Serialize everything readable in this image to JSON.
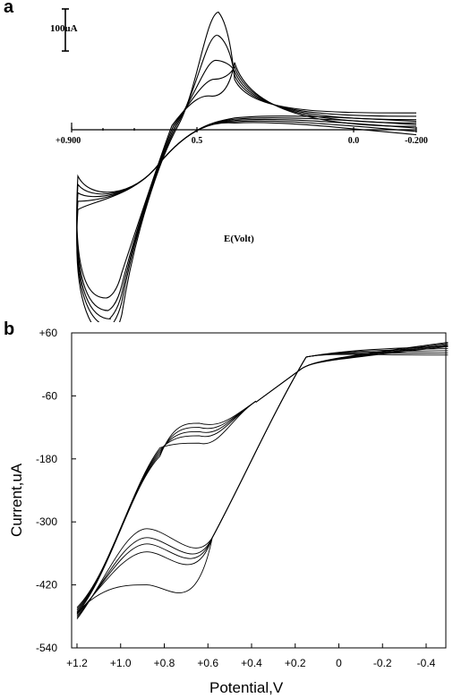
{
  "panels": {
    "a_label": "a",
    "b_label": "b"
  },
  "colors": {
    "ink": "#000000",
    "background": "#ffffff"
  },
  "chart_data": [
    {
      "panel": "a",
      "type": "line",
      "xlabel": "E(Volt)",
      "ylabel": "",
      "scale_bar_label": "100uA",
      "x_tick_labels": [
        "+0.900",
        "0.5",
        "0.0",
        "-0.200"
      ],
      "x_tick_values": [
        0.9,
        0.5,
        0.0,
        -0.2
      ],
      "x_direction": "decreasing-left-to-right",
      "y_units": "uA (zero at x-axis)",
      "cycles": [
        {
          "anodic_peak_uA": 280,
          "cathodic_peak_uA": -500
        },
        {
          "anodic_peak_uA": 225,
          "cathodic_peak_uA": -470
        },
        {
          "anodic_peak_uA": 165,
          "cathodic_peak_uA": -450
        },
        {
          "anodic_peak_uA": 120,
          "cathodic_peak_uA": -430
        },
        {
          "anodic_peak_uA": 80,
          "cathodic_peak_uA": -400
        }
      ]
    },
    {
      "panel": "b",
      "type": "line",
      "xlabel": "Potential,V",
      "ylabel": "Current,uA",
      "x_tick_labels": [
        "+1.2",
        "+1.0",
        "+0.8",
        "+0.6",
        "+0.4",
        "+0.2",
        "0",
        "-0.2",
        "-0.4"
      ],
      "x_tick_values": [
        1.2,
        1.0,
        0.8,
        0.6,
        0.4,
        0.2,
        0.0,
        -0.2,
        -0.4
      ],
      "y_tick_labels": [
        "+60",
        "-60",
        "-180",
        "-300",
        "-420",
        "-540"
      ],
      "y_tick_values": [
        60,
        -60,
        -180,
        -300,
        -420,
        -540
      ],
      "xlim": [
        1.2,
        -0.5
      ],
      "ylim": [
        -540,
        60
      ],
      "cycles": [
        {
          "plateau_upper_uA": -112,
          "peak_lower_uA": -313
        },
        {
          "plateau_upper_uA": -120,
          "peak_lower_uA": -330
        },
        {
          "plateau_upper_uA": -128,
          "peak_lower_uA": -342
        },
        {
          "plateau_upper_uA": -136,
          "peak_lower_uA": -357
        },
        {
          "plateau_upper_uA": -150,
          "peak_lower_uA": -420
        }
      ]
    }
  ]
}
